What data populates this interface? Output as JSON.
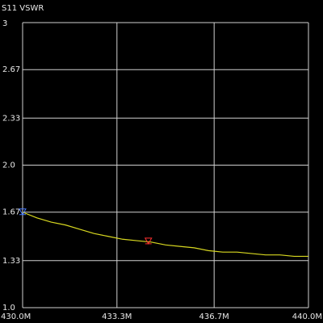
{
  "chart_data": {
    "type": "line",
    "title": "S11 VSWR",
    "x": [
      430,
      430.5,
      431,
      431.5,
      432,
      432.5,
      433,
      433.5,
      434,
      434.5,
      435,
      435.5,
      436,
      436.5,
      437,
      437.5,
      438,
      438.5,
      439,
      439.5,
      440
    ],
    "series": [
      {
        "color": "#d8d820",
        "values": [
          1.67,
          1.63,
          1.6,
          1.58,
          1.55,
          1.52,
          1.5,
          1.48,
          1.47,
          1.46,
          1.44,
          1.43,
          1.42,
          1.4,
          1.39,
          1.39,
          1.38,
          1.37,
          1.37,
          1.36,
          1.36
        ]
      }
    ],
    "markers": [
      {
        "x": 430,
        "y": 1.67,
        "color": "#4a7cff"
      },
      {
        "x": 434.4,
        "y": 1.465,
        "color": "#ff3030"
      }
    ],
    "xlim": [
      430,
      440
    ],
    "xticks": [
      {
        "value": 430,
        "label": "430.0M"
      },
      {
        "value": 433.3,
        "label": "433.3M"
      },
      {
        "value": 436.7,
        "label": "436.7M"
      },
      {
        "value": 440,
        "label": "440.0M"
      }
    ],
    "ylim": [
      1,
      3
    ],
    "yticks": [
      {
        "value": 1,
        "label": "1.0"
      },
      1.33,
      1.67,
      {
        "value": 2,
        "label": "2.0"
      },
      2.33,
      2.67,
      3
    ],
    "grid": true
  }
}
